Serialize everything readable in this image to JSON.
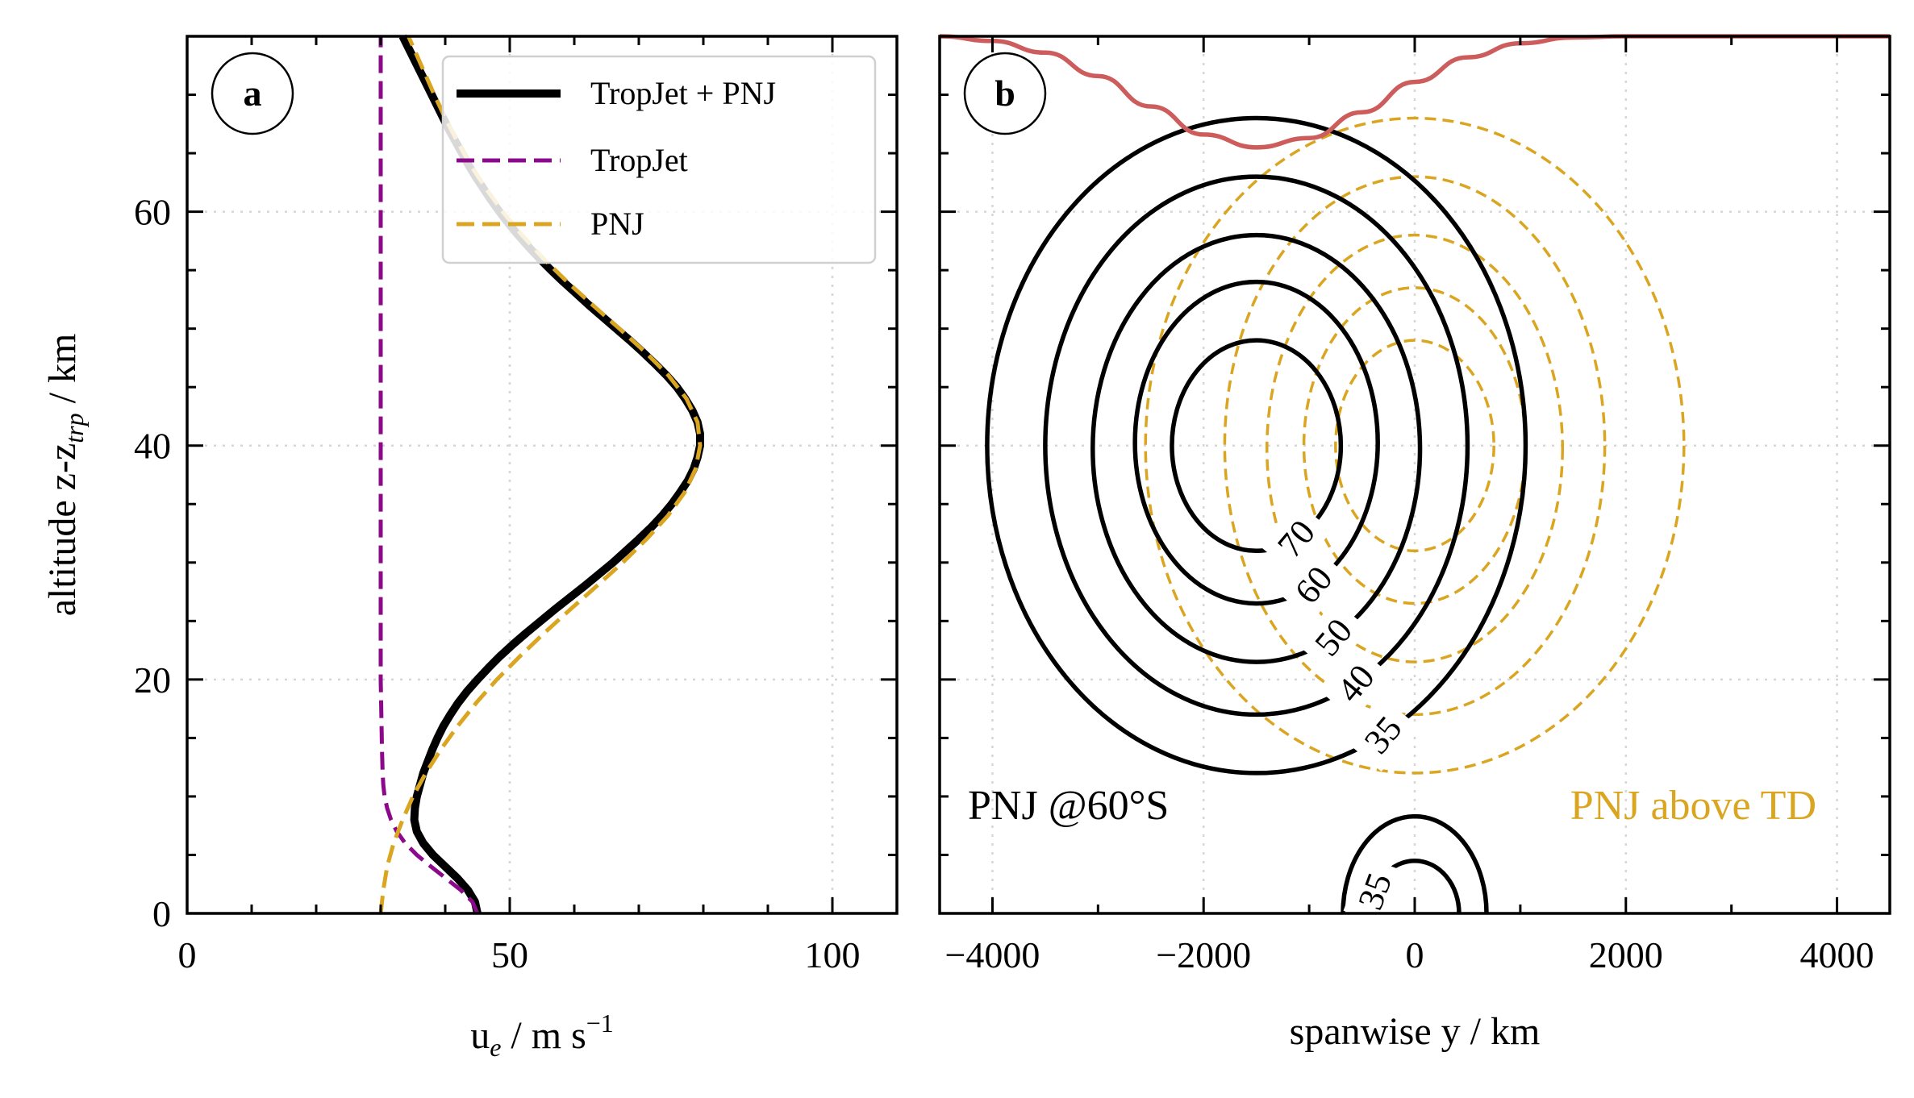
{
  "chart_data": [
    {
      "type": "line",
      "panel_label": "a",
      "xlabel": "u",
      "xlabel_sub": "e",
      "xlabel_unit": " / m s",
      "xlabel_sup": "−1",
      "ylabel": "altitude z-z",
      "ylabel_sub": "trp",
      "ylabel_unit": " / km",
      "xlim": [
        0,
        110
      ],
      "ylim": [
        0,
        75
      ],
      "x_ticks": [
        0,
        50,
        100
      ],
      "x_tick_labels": [
        "0",
        "50",
        "100"
      ],
      "y_ticks": [
        0,
        20,
        40,
        60
      ],
      "y_tick_labels": [
        "0",
        "20",
        "40",
        "60"
      ],
      "grid": true,
      "legend_position": "top-right",
      "series": [
        {
          "name": "TropJet + PNJ",
          "color": "#000000",
          "style": "solid",
          "points": [
            [
              45.0,
              0
            ],
            [
              44.6,
              1
            ],
            [
              43.5,
              2
            ],
            [
              41.9,
              3
            ],
            [
              40.0,
              4
            ],
            [
              38.1,
              5
            ],
            [
              36.6,
              6
            ],
            [
              35.6,
              7
            ],
            [
              35.2,
              8
            ],
            [
              35.3,
              9
            ],
            [
              35.6,
              10
            ],
            [
              36.1,
              11
            ],
            [
              36.6,
              12
            ],
            [
              37.3,
              13
            ],
            [
              38.0,
              14
            ],
            [
              38.8,
              15
            ],
            [
              39.7,
              16
            ],
            [
              40.8,
              17
            ],
            [
              42.0,
              18
            ],
            [
              43.4,
              19
            ],
            [
              45.0,
              20
            ],
            [
              46.7,
              21
            ],
            [
              48.5,
              22
            ],
            [
              50.5,
              23
            ],
            [
              52.6,
              24
            ],
            [
              54.8,
              25
            ],
            [
              57.0,
              26
            ],
            [
              59.3,
              27
            ],
            [
              61.6,
              28
            ],
            [
              63.8,
              29
            ],
            [
              66.0,
              30
            ],
            [
              68.0,
              31
            ],
            [
              70.0,
              32
            ],
            [
              71.9,
              33
            ],
            [
              73.6,
              34
            ],
            [
              75.1,
              35
            ],
            [
              76.4,
              36
            ],
            [
              77.6,
              37
            ],
            [
              78.5,
              38
            ],
            [
              79.1,
              39
            ],
            [
              79.5,
              40
            ],
            [
              79.5,
              41
            ],
            [
              79.1,
              42
            ],
            [
              78.3,
              43
            ],
            [
              77.2,
              44
            ],
            [
              75.9,
              45
            ],
            [
              74.3,
              46
            ],
            [
              72.5,
              47
            ],
            [
              70.6,
              48
            ],
            [
              68.6,
              49
            ],
            [
              66.5,
              50
            ],
            [
              64.4,
              51
            ],
            [
              62.3,
              52
            ],
            [
              60.3,
              53
            ],
            [
              58.3,
              54
            ],
            [
              56.4,
              55
            ],
            [
              54.6,
              56
            ],
            [
              52.9,
              57
            ],
            [
              51.3,
              58
            ],
            [
              49.8,
              59
            ],
            [
              48.4,
              60
            ],
            [
              47.1,
              61
            ],
            [
              45.9,
              62
            ],
            [
              44.7,
              63
            ],
            [
              43.6,
              64
            ],
            [
              42.6,
              65
            ],
            [
              41.6,
              66
            ],
            [
              40.6,
              67
            ],
            [
              39.7,
              68
            ],
            [
              38.8,
              69
            ],
            [
              37.9,
              70
            ],
            [
              37.0,
              71
            ],
            [
              36.1,
              72
            ],
            [
              35.2,
              73
            ],
            [
              34.3,
              74
            ],
            [
              33.4,
              75
            ]
          ]
        },
        {
          "name": "TropJet",
          "color": "#8b0a8b",
          "style": "dashed",
          "points": [
            [
              45.0,
              0
            ],
            [
              44.2,
              1
            ],
            [
              42.4,
              2
            ],
            [
              40.1,
              3
            ],
            [
              37.8,
              4
            ],
            [
              35.6,
              5
            ],
            [
              33.8,
              6
            ],
            [
              32.5,
              7
            ],
            [
              31.6,
              8
            ],
            [
              31.0,
              9
            ],
            [
              30.6,
              10
            ],
            [
              30.4,
              11
            ],
            [
              30.3,
              12
            ],
            [
              30.2,
              14
            ],
            [
              30.1,
              17
            ],
            [
              30.0,
              20
            ],
            [
              30.0,
              30
            ],
            [
              30.0,
              40
            ],
            [
              30.0,
              50
            ],
            [
              30.0,
              60
            ],
            [
              30.0,
              70
            ],
            [
              30.0,
              75
            ]
          ]
        },
        {
          "name": "PNJ",
          "color": "#daa520",
          "style": "dashed",
          "points": [
            [
              30.0,
              0
            ],
            [
              30.4,
              2
            ],
            [
              31.0,
              4
            ],
            [
              32.0,
              6
            ],
            [
              33.4,
              8
            ],
            [
              35.0,
              10
            ],
            [
              37.0,
              12
            ],
            [
              39.3,
              14
            ],
            [
              41.9,
              16
            ],
            [
              44.8,
              18
            ],
            [
              48.0,
              20
            ],
            [
              51.6,
              22
            ],
            [
              55.4,
              24
            ],
            [
              59.4,
              26
            ],
            [
              63.5,
              28
            ],
            [
              67.5,
              30
            ],
            [
              71.2,
              32
            ],
            [
              74.5,
              34
            ],
            [
              77.1,
              36
            ],
            [
              78.8,
              38
            ],
            [
              79.5,
              40
            ],
            [
              79.1,
              42
            ],
            [
              77.4,
              44
            ],
            [
              74.6,
              46
            ],
            [
              71.0,
              48
            ],
            [
              67.0,
              50
            ],
            [
              62.9,
              52
            ],
            [
              58.9,
              54
            ],
            [
              55.2,
              56
            ],
            [
              51.9,
              58
            ],
            [
              48.9,
              60
            ],
            [
              46.3,
              62
            ],
            [
              43.9,
              64
            ],
            [
              41.9,
              66
            ],
            [
              40.0,
              68
            ],
            [
              38.3,
              70
            ],
            [
              36.7,
              72
            ],
            [
              35.1,
              74
            ],
            [
              34.3,
              75
            ]
          ]
        }
      ]
    },
    {
      "type": "contour",
      "panel_label": "b",
      "xlabel": "spanwise y / km",
      "xlim": [
        -4500,
        4500
      ],
      "ylim": [
        0,
        75
      ],
      "x_ticks": [
        -4000,
        -2000,
        0,
        2000,
        4000
      ],
      "x_tick_labels": [
        "−4000",
        "−2000",
        "0",
        "2000",
        "4000"
      ],
      "grid": true,
      "pnj_center": {
        "y": -1500,
        "z": 40
      },
      "pnj_above_td_center": {
        "y": 0,
        "z": 40
      },
      "tropjet_center": {
        "y": 0,
        "z": 0
      },
      "contours_pnj_60S": [
        {
          "level": 70,
          "label": "70",
          "half_width": 800,
          "z_bottom": 31,
          "z_top": 49
        },
        {
          "level": 60,
          "label": "60",
          "half_width": 1150,
          "z_bottom": 26.5,
          "z_top": 54
        },
        {
          "level": 50,
          "label": "50",
          "half_width": 1550,
          "z_bottom": 21.5,
          "z_top": 58
        },
        {
          "level": 40,
          "label": "40",
          "half_width": 2000,
          "z_bottom": 17,
          "z_top": 63
        },
        {
          "level": 35,
          "label": "35",
          "half_width": 2550,
          "z_bottom": 12,
          "z_top": 68
        }
      ],
      "contours_pnj_above_td": [
        {
          "half_width": 750,
          "z_bottom": 31,
          "z_top": 49
        },
        {
          "half_width": 1050,
          "z_bottom": 26.5,
          "z_top": 53.5
        },
        {
          "half_width": 1400,
          "z_bottom": 21.5,
          "z_top": 58
        },
        {
          "half_width": 1800,
          "z_bottom": 17,
          "z_top": 63
        },
        {
          "half_width": 2550,
          "z_bottom": 12,
          "z_top": 68
        }
      ],
      "contours_tropjet": [
        {
          "level": 35,
          "label": "35",
          "half_width": 420,
          "z_top": 4.5
        },
        {
          "level": 35,
          "label": "",
          "half_width": 680,
          "z_top": 8.3
        }
      ],
      "tropopause_line": {
        "color": "#cd5c5c",
        "points": [
          [
            -4500,
            75
          ],
          [
            -4000,
            74.6
          ],
          [
            -3500,
            73.6
          ],
          [
            -3000,
            71.6
          ],
          [
            -2500,
            69.0
          ],
          [
            -2000,
            66.6
          ],
          [
            -1500,
            65.5
          ],
          [
            -1000,
            66.3
          ],
          [
            -500,
            68.5
          ],
          [
            0,
            71.1
          ],
          [
            500,
            73.2
          ],
          [
            1000,
            74.4
          ],
          [
            1500,
            74.9
          ],
          [
            2000,
            75
          ],
          [
            4500,
            75
          ]
        ]
      },
      "annotations": [
        {
          "text": "PNJ @60°S",
          "color": "#000000"
        },
        {
          "text": "PNJ above TD",
          "color": "#daa520"
        }
      ]
    }
  ]
}
